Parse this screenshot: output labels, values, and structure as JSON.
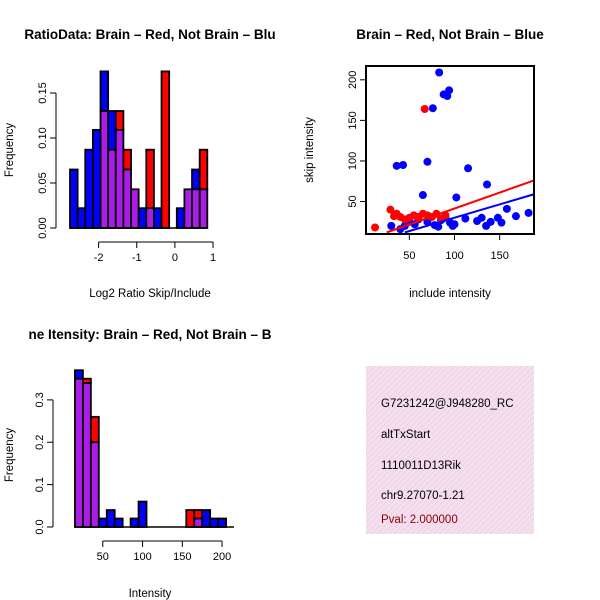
{
  "colors": {
    "brain": "#ff0000",
    "not_brain": "#0000ff",
    "overlap": "#a020f0",
    "info_bg": "#f4dfee",
    "pval_text": "#8b0000"
  },
  "chart_data": [
    {
      "type": "bar",
      "title": "RatioData: Brain – Red, Not Brain – Blu",
      "xlabel": "Log2 Ratio Skip/Include",
      "ylabel": "Frequency",
      "xlim": [
        -2.75,
        1.55
      ],
      "ylim": [
        0,
        0.18
      ],
      "xticks": [
        "-2",
        "-1",
        "0",
        "1"
      ],
      "xtick_values": [
        -2,
        -1,
        0,
        1
      ],
      "yticks": [
        "0.00",
        "0.05",
        "0.10",
        "0.15"
      ],
      "ytick_values": [
        0,
        0.05,
        0.1,
        0.15
      ],
      "bin_start": -2.75,
      "bin_width": 0.2,
      "series": [
        {
          "name": "Not Brain",
          "color": "#0000ff",
          "values": [
            0.065,
            0.022,
            0.087,
            0.109,
            0.174,
            0.13,
            0.109,
            0.065,
            0.043,
            0.022,
            0.022,
            0.022,
            0,
            0,
            0.022,
            0.043,
            0.065,
            0.043
          ]
        },
        {
          "name": "Brain",
          "color": "#ff0000",
          "values": [
            0,
            0,
            0,
            0,
            0.13,
            0.087,
            0.13,
            0.087,
            0.043,
            0,
            0.087,
            0,
            0.174,
            0,
            0,
            0.043,
            0.043,
            0.087
          ]
        }
      ]
    },
    {
      "type": "scatter",
      "title": "Brain – Red, Not Brain – Blue",
      "xlabel": "include intensity",
      "ylabel": "skip intensity",
      "xlim": [
        2,
        188
      ],
      "ylim": [
        10,
        217
      ],
      "xticks": [
        "50",
        "100",
        "150"
      ],
      "xtick_values": [
        50,
        100,
        150
      ],
      "yticks": [
        "50",
        "100",
        "150",
        "200"
      ],
      "ytick_values": [
        50,
        100,
        150,
        200
      ],
      "series": [
        {
          "name": "Not Brain",
          "color": "#0000ff",
          "points": [
            [
              83,
              209
            ],
            [
              88,
              182
            ],
            [
              92,
              180
            ],
            [
              94,
              187
            ],
            [
              76,
              165
            ],
            [
              36,
              94
            ],
            [
              43,
              95
            ],
            [
              70,
              99
            ],
            [
              115,
              91
            ],
            [
              65,
              58
            ],
            [
              136,
              71
            ],
            [
              102,
              55
            ],
            [
              30,
              20
            ],
            [
              40,
              16
            ],
            [
              50,
              25
            ],
            [
              60,
              28
            ],
            [
              70,
              25
            ],
            [
              78,
              21
            ],
            [
              85,
              27
            ],
            [
              90,
              30
            ],
            [
              95,
              24
            ],
            [
              98,
              20
            ],
            [
              112,
              29
            ],
            [
              125,
              26
            ],
            [
              130,
              30
            ],
            [
              135,
              20
            ],
            [
              140,
              25
            ],
            [
              148,
              30
            ],
            [
              152,
              24
            ],
            [
              158,
              41
            ],
            [
              168,
              32
            ],
            [
              182,
              36
            ],
            [
              45,
              20
            ],
            [
              56,
              22
            ],
            [
              82,
              19
            ],
            [
              100,
              22
            ]
          ]
        },
        {
          "name": "Brain",
          "color": "#ff0000",
          "points": [
            [
              67,
              164
            ],
            [
              12,
              18
            ],
            [
              29,
              40
            ],
            [
              33,
              32
            ],
            [
              36,
              35
            ],
            [
              40,
              31
            ],
            [
              45,
              28
            ],
            [
              50,
              30
            ],
            [
              55,
              33
            ],
            [
              60,
              31
            ],
            [
              65,
              35
            ],
            [
              70,
              33
            ],
            [
              75,
              31
            ],
            [
              80,
              35
            ],
            [
              85,
              29
            ],
            [
              90,
              33
            ]
          ]
        }
      ],
      "fit_lines": [
        {
          "name": "Brain fit",
          "color": "#ff0000",
          "x": [
            25,
            188
          ],
          "y": [
            12,
            76
          ]
        },
        {
          "name": "Not Brain fit",
          "color": "#0000ff",
          "x": [
            45,
            188
          ],
          "y": [
            12,
            59
          ]
        }
      ]
    },
    {
      "type": "bar",
      "title": "ne Itensity: Brain – Red, Not Brain – B",
      "xlabel": "Intensity",
      "ylabel": "Frequency",
      "xlim": [
        5,
        215
      ],
      "ylim": [
        0,
        0.38
      ],
      "xticks": [
        "50",
        "100",
        "150",
        "200"
      ],
      "xtick_values": [
        50,
        100,
        150,
        200
      ],
      "yticks": [
        "0.0",
        "0.1",
        "0.2",
        "0.3"
      ],
      "ytick_values": [
        0,
        0.1,
        0.2,
        0.3
      ],
      "bin_start": 15,
      "bin_width": 10,
      "series": [
        {
          "name": "Not Brain",
          "color": "#0000ff",
          "values": [
            0.37,
            0.34,
            0.2,
            0.02,
            0.04,
            0.02,
            0.0,
            0.02,
            0.06,
            0.0,
            0.0,
            0.0,
            0.0,
            0.0,
            0.0,
            0.02,
            0.04,
            0.02,
            0.02,
            0.0
          ]
        },
        {
          "name": "Brain",
          "color": "#ff0000",
          "values": [
            0.35,
            0.35,
            0.26,
            0,
            0,
            0,
            0,
            0,
            0,
            0,
            0,
            0,
            0,
            0,
            0.04,
            0.04,
            0,
            0,
            0,
            0
          ]
        }
      ]
    }
  ],
  "info": {
    "lines": [
      "G7231242@J948280_RC",
      "altTxStart",
      "1110011D13Rik",
      "chr9.27070-1.21"
    ],
    "pval": "Pval: 2.000000"
  }
}
